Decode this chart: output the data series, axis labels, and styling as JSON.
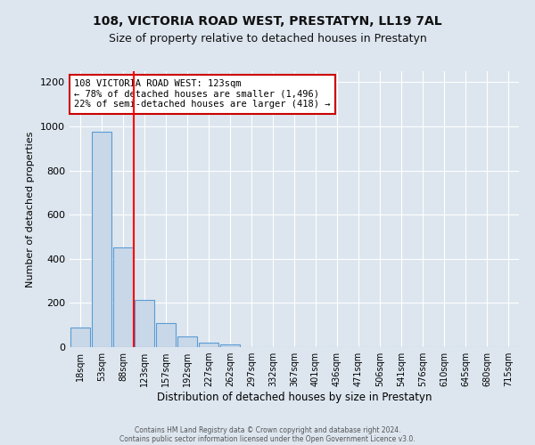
{
  "title": "108, VICTORIA ROAD WEST, PRESTATYN, LL19 7AL",
  "subtitle": "Size of property relative to detached houses in Prestatyn",
  "xlabel": "Distribution of detached houses by size in Prestatyn",
  "ylabel": "Number of detached properties",
  "bar_labels": [
    "18sqm",
    "53sqm",
    "88sqm",
    "123sqm",
    "157sqm",
    "192sqm",
    "227sqm",
    "262sqm",
    "297sqm",
    "332sqm",
    "367sqm",
    "401sqm",
    "436sqm",
    "471sqm",
    "506sqm",
    "541sqm",
    "576sqm",
    "610sqm",
    "645sqm",
    "680sqm",
    "715sqm"
  ],
  "bar_values": [
    90,
    975,
    450,
    215,
    110,
    50,
    20,
    12,
    0,
    0,
    0,
    0,
    0,
    0,
    0,
    0,
    0,
    0,
    0,
    0,
    0
  ],
  "bar_color": "#c8d8e8",
  "bar_edge_color": "#5b9bd5",
  "red_line_index": 3,
  "annotation_line1": "108 VICTORIA ROAD WEST: 123sqm",
  "annotation_line2": "← 78% of detached houses are smaller (1,496)",
  "annotation_line3": "22% of semi-detached houses are larger (418) →",
  "annotation_box_color": "#ffffff",
  "annotation_box_edge_color": "#cc0000",
  "ylim": [
    0,
    1250
  ],
  "yticks": [
    0,
    200,
    400,
    600,
    800,
    1000,
    1200
  ],
  "footer_line1": "Contains HM Land Registry data © Crown copyright and database right 2024.",
  "footer_line2": "Contains public sector information licensed under the Open Government Licence v3.0.",
  "background_color": "#dde6ef",
  "grid_color": "#ffffff",
  "title_fontsize": 10,
  "subtitle_fontsize": 9,
  "annotation_fontsize": 7.5
}
